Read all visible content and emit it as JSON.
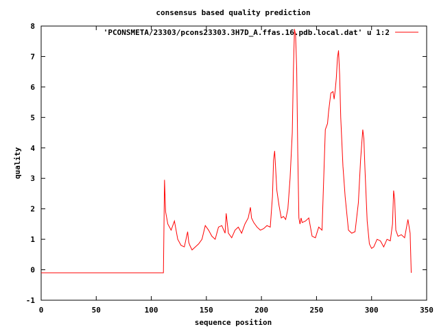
{
  "chart_data": {
    "type": "line",
    "title": "consensus based quality prediction",
    "xlabel": "sequence position",
    "ylabel": "quality",
    "xlim": [
      0,
      350
    ],
    "ylim": [
      -1,
      8
    ],
    "x_ticks": [
      "0",
      "50",
      "100",
      "150",
      "200",
      "250",
      "300",
      "350"
    ],
    "y_ticks": [
      "-1",
      "0",
      "1",
      "2",
      "3",
      "4",
      "5",
      "6",
      "7",
      "8"
    ],
    "grid": false,
    "legend_position": "top-right",
    "series": [
      {
        "name": "'PCONSMETA/23303/pcons23303.3H7D_A.ffas.16.pdb.local.dat' u 1:2",
        "color": "#ff0000",
        "x": [
          0,
          111,
          112,
          113,
          115,
          118,
          121,
          124,
          127,
          130,
          133,
          134,
          135,
          137,
          140,
          143,
          146,
          149,
          152,
          155,
          158,
          161,
          164,
          167,
          168,
          170,
          173,
          176,
          179,
          182,
          185,
          188,
          190,
          191,
          193,
          196,
          199,
          202,
          205,
          208,
          210,
          211,
          212,
          214,
          216,
          218,
          220,
          222,
          224,
          226,
          228,
          229,
          230,
          231,
          232,
          233,
          234,
          235,
          236,
          237,
          240,
          243,
          246,
          249,
          252,
          255,
          258,
          260,
          261,
          262,
          263,
          265,
          266,
          267,
          268,
          269,
          270,
          271,
          272,
          274,
          276,
          279,
          282,
          285,
          288,
          290,
          292,
          293,
          294,
          296,
          298,
          300,
          302,
          305,
          308,
          311,
          314,
          317,
          319,
          320,
          321,
          322,
          324,
          327,
          330,
          333,
          335,
          336
        ],
        "y": [
          -0.1,
          -0.1,
          2.95,
          1.9,
          1.5,
          1.3,
          1.6,
          1.0,
          0.8,
          0.75,
          1.25,
          0.9,
          0.8,
          0.65,
          0.75,
          0.85,
          1.0,
          1.45,
          1.3,
          1.1,
          1.0,
          1.4,
          1.45,
          1.2,
          1.85,
          1.2,
          1.05,
          1.3,
          1.4,
          1.2,
          1.5,
          1.7,
          2.05,
          1.7,
          1.55,
          1.4,
          1.3,
          1.35,
          1.45,
          1.4,
          2.4,
          3.6,
          3.9,
          2.6,
          2.1,
          1.7,
          1.75,
          1.65,
          2.0,
          3.0,
          4.5,
          6.5,
          7.9,
          7.7,
          6.6,
          3.8,
          1.7,
          1.5,
          1.7,
          1.55,
          1.6,
          1.7,
          1.1,
          1.05,
          1.4,
          1.3,
          4.6,
          4.8,
          5.2,
          5.5,
          5.8,
          5.85,
          5.6,
          5.9,
          6.3,
          6.95,
          7.2,
          6.4,
          5.0,
          3.4,
          2.4,
          1.3,
          1.2,
          1.25,
          2.2,
          3.6,
          4.6,
          4.3,
          3.3,
          1.6,
          0.85,
          0.7,
          0.75,
          1.0,
          0.95,
          0.75,
          1.0,
          0.95,
          1.5,
          2.6,
          2.3,
          1.3,
          1.1,
          1.15,
          1.05,
          1.65,
          1.2,
          -0.1
        ]
      }
    ]
  }
}
